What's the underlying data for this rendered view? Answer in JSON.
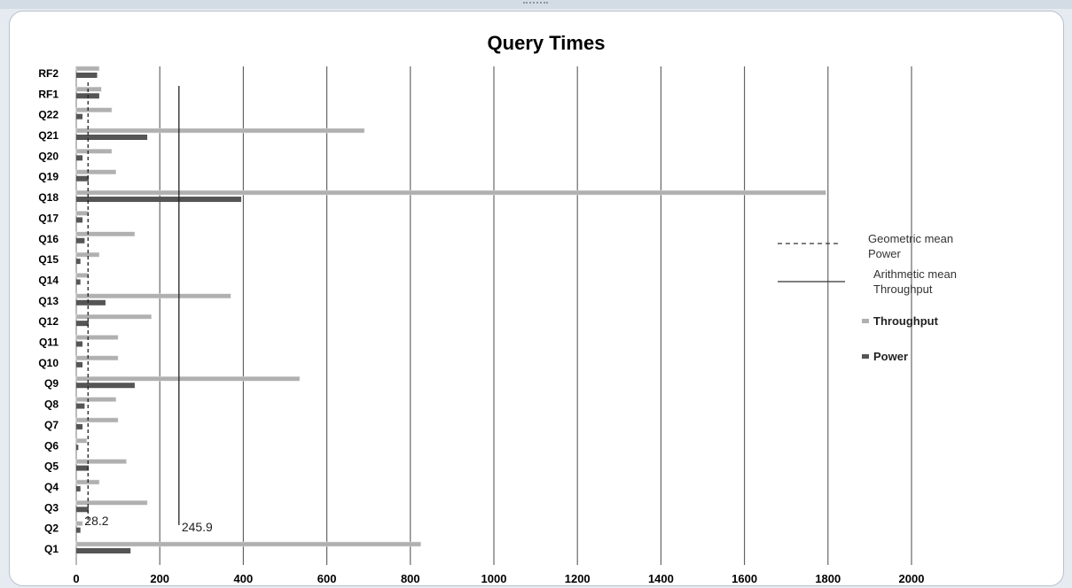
{
  "chart_data": {
    "type": "bar",
    "title": "Query Times",
    "orientation": "horizontal",
    "categories": [
      "Q1",
      "Q2",
      "Q3",
      "Q4",
      "Q5",
      "Q6",
      "Q7",
      "Q8",
      "Q9",
      "Q10",
      "Q11",
      "Q12",
      "Q13",
      "Q14",
      "Q15",
      "Q16",
      "Q17",
      "Q18",
      "Q19",
      "Q20",
      "Q21",
      "Q22",
      "RF1",
      "RF2"
    ],
    "series": [
      {
        "name": "Throughput",
        "color": "#b0b0b0",
        "values": [
          825,
          15,
          170,
          55,
          120,
          25,
          100,
          95,
          535,
          100,
          100,
          180,
          370,
          30,
          55,
          140,
          30,
          1795,
          95,
          85,
          690,
          85,
          60,
          55
        ]
      },
      {
        "name": "Power",
        "color": "#555555",
        "values": [
          130,
          10,
          30,
          10,
          30,
          5,
          15,
          20,
          140,
          15,
          15,
          30,
          70,
          10,
          10,
          20,
          15,
          395,
          30,
          15,
          170,
          15,
          55,
          50
        ]
      }
    ],
    "reference_lines": [
      {
        "name": "Geometric mean Power",
        "label_line1": "Geometric mean",
        "label_line2": "Power",
        "value": 28.2,
        "value_label": "28.2",
        "style": "dashed"
      },
      {
        "name": "Arithmetic mean Throughput",
        "label_line1": "Arithmetic mean",
        "label_line2": "Throughput",
        "value": 245.9,
        "value_label": "245.9",
        "style": "solid"
      }
    ],
    "xlim": [
      0,
      2000
    ],
    "xticks": [
      0,
      200,
      400,
      600,
      800,
      1000,
      1200,
      1400,
      1600,
      1800,
      2000
    ],
    "grid": "vertical",
    "legend_position": "right"
  }
}
